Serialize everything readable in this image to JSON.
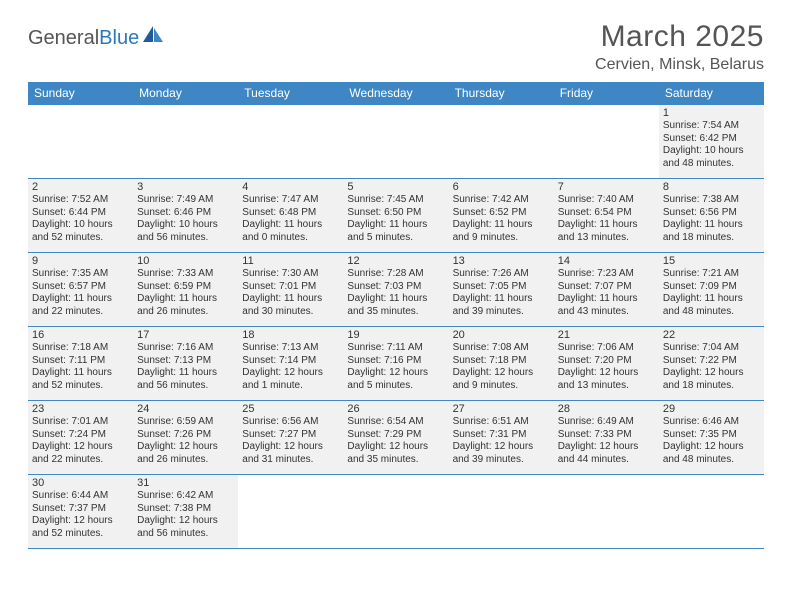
{
  "logo": {
    "text1": "General",
    "text2": "Blue"
  },
  "title": "March 2025",
  "location": "Cervien, Minsk, Belarus",
  "colors": {
    "header_bg": "#3e86c4",
    "header_text": "#ffffff",
    "cell_bg": "#f1f1f1",
    "border": "#3e86c4",
    "text": "#333333",
    "logo_gray": "#555555",
    "logo_blue": "#2a7ab9"
  },
  "weekdays": [
    "Sunday",
    "Monday",
    "Tuesday",
    "Wednesday",
    "Thursday",
    "Friday",
    "Saturday"
  ],
  "weeks": [
    [
      null,
      null,
      null,
      null,
      null,
      null,
      {
        "day": "1",
        "sunrise": "Sunrise: 7:54 AM",
        "sunset": "Sunset: 6:42 PM",
        "dl1": "Daylight: 10 hours",
        "dl2": "and 48 minutes."
      }
    ],
    [
      {
        "day": "2",
        "sunrise": "Sunrise: 7:52 AM",
        "sunset": "Sunset: 6:44 PM",
        "dl1": "Daylight: 10 hours",
        "dl2": "and 52 minutes."
      },
      {
        "day": "3",
        "sunrise": "Sunrise: 7:49 AM",
        "sunset": "Sunset: 6:46 PM",
        "dl1": "Daylight: 10 hours",
        "dl2": "and 56 minutes."
      },
      {
        "day": "4",
        "sunrise": "Sunrise: 7:47 AM",
        "sunset": "Sunset: 6:48 PM",
        "dl1": "Daylight: 11 hours",
        "dl2": "and 0 minutes."
      },
      {
        "day": "5",
        "sunrise": "Sunrise: 7:45 AM",
        "sunset": "Sunset: 6:50 PM",
        "dl1": "Daylight: 11 hours",
        "dl2": "and 5 minutes."
      },
      {
        "day": "6",
        "sunrise": "Sunrise: 7:42 AM",
        "sunset": "Sunset: 6:52 PM",
        "dl1": "Daylight: 11 hours",
        "dl2": "and 9 minutes."
      },
      {
        "day": "7",
        "sunrise": "Sunrise: 7:40 AM",
        "sunset": "Sunset: 6:54 PM",
        "dl1": "Daylight: 11 hours",
        "dl2": "and 13 minutes."
      },
      {
        "day": "8",
        "sunrise": "Sunrise: 7:38 AM",
        "sunset": "Sunset: 6:56 PM",
        "dl1": "Daylight: 11 hours",
        "dl2": "and 18 minutes."
      }
    ],
    [
      {
        "day": "9",
        "sunrise": "Sunrise: 7:35 AM",
        "sunset": "Sunset: 6:57 PM",
        "dl1": "Daylight: 11 hours",
        "dl2": "and 22 minutes."
      },
      {
        "day": "10",
        "sunrise": "Sunrise: 7:33 AM",
        "sunset": "Sunset: 6:59 PM",
        "dl1": "Daylight: 11 hours",
        "dl2": "and 26 minutes."
      },
      {
        "day": "11",
        "sunrise": "Sunrise: 7:30 AM",
        "sunset": "Sunset: 7:01 PM",
        "dl1": "Daylight: 11 hours",
        "dl2": "and 30 minutes."
      },
      {
        "day": "12",
        "sunrise": "Sunrise: 7:28 AM",
        "sunset": "Sunset: 7:03 PM",
        "dl1": "Daylight: 11 hours",
        "dl2": "and 35 minutes."
      },
      {
        "day": "13",
        "sunrise": "Sunrise: 7:26 AM",
        "sunset": "Sunset: 7:05 PM",
        "dl1": "Daylight: 11 hours",
        "dl2": "and 39 minutes."
      },
      {
        "day": "14",
        "sunrise": "Sunrise: 7:23 AM",
        "sunset": "Sunset: 7:07 PM",
        "dl1": "Daylight: 11 hours",
        "dl2": "and 43 minutes."
      },
      {
        "day": "15",
        "sunrise": "Sunrise: 7:21 AM",
        "sunset": "Sunset: 7:09 PM",
        "dl1": "Daylight: 11 hours",
        "dl2": "and 48 minutes."
      }
    ],
    [
      {
        "day": "16",
        "sunrise": "Sunrise: 7:18 AM",
        "sunset": "Sunset: 7:11 PM",
        "dl1": "Daylight: 11 hours",
        "dl2": "and 52 minutes."
      },
      {
        "day": "17",
        "sunrise": "Sunrise: 7:16 AM",
        "sunset": "Sunset: 7:13 PM",
        "dl1": "Daylight: 11 hours",
        "dl2": "and 56 minutes."
      },
      {
        "day": "18",
        "sunrise": "Sunrise: 7:13 AM",
        "sunset": "Sunset: 7:14 PM",
        "dl1": "Daylight: 12 hours",
        "dl2": "and 1 minute."
      },
      {
        "day": "19",
        "sunrise": "Sunrise: 7:11 AM",
        "sunset": "Sunset: 7:16 PM",
        "dl1": "Daylight: 12 hours",
        "dl2": "and 5 minutes."
      },
      {
        "day": "20",
        "sunrise": "Sunrise: 7:08 AM",
        "sunset": "Sunset: 7:18 PM",
        "dl1": "Daylight: 12 hours",
        "dl2": "and 9 minutes."
      },
      {
        "day": "21",
        "sunrise": "Sunrise: 7:06 AM",
        "sunset": "Sunset: 7:20 PM",
        "dl1": "Daylight: 12 hours",
        "dl2": "and 13 minutes."
      },
      {
        "day": "22",
        "sunrise": "Sunrise: 7:04 AM",
        "sunset": "Sunset: 7:22 PM",
        "dl1": "Daylight: 12 hours",
        "dl2": "and 18 minutes."
      }
    ],
    [
      {
        "day": "23",
        "sunrise": "Sunrise: 7:01 AM",
        "sunset": "Sunset: 7:24 PM",
        "dl1": "Daylight: 12 hours",
        "dl2": "and 22 minutes."
      },
      {
        "day": "24",
        "sunrise": "Sunrise: 6:59 AM",
        "sunset": "Sunset: 7:26 PM",
        "dl1": "Daylight: 12 hours",
        "dl2": "and 26 minutes."
      },
      {
        "day": "25",
        "sunrise": "Sunrise: 6:56 AM",
        "sunset": "Sunset: 7:27 PM",
        "dl1": "Daylight: 12 hours",
        "dl2": "and 31 minutes."
      },
      {
        "day": "26",
        "sunrise": "Sunrise: 6:54 AM",
        "sunset": "Sunset: 7:29 PM",
        "dl1": "Daylight: 12 hours",
        "dl2": "and 35 minutes."
      },
      {
        "day": "27",
        "sunrise": "Sunrise: 6:51 AM",
        "sunset": "Sunset: 7:31 PM",
        "dl1": "Daylight: 12 hours",
        "dl2": "and 39 minutes."
      },
      {
        "day": "28",
        "sunrise": "Sunrise: 6:49 AM",
        "sunset": "Sunset: 7:33 PM",
        "dl1": "Daylight: 12 hours",
        "dl2": "and 44 minutes."
      },
      {
        "day": "29",
        "sunrise": "Sunrise: 6:46 AM",
        "sunset": "Sunset: 7:35 PM",
        "dl1": "Daylight: 12 hours",
        "dl2": "and 48 minutes."
      }
    ],
    [
      {
        "day": "30",
        "sunrise": "Sunrise: 6:44 AM",
        "sunset": "Sunset: 7:37 PM",
        "dl1": "Daylight: 12 hours",
        "dl2": "and 52 minutes."
      },
      {
        "day": "31",
        "sunrise": "Sunrise: 6:42 AM",
        "sunset": "Sunset: 7:38 PM",
        "dl1": "Daylight: 12 hours",
        "dl2": "and 56 minutes."
      },
      null,
      null,
      null,
      null,
      null
    ]
  ]
}
